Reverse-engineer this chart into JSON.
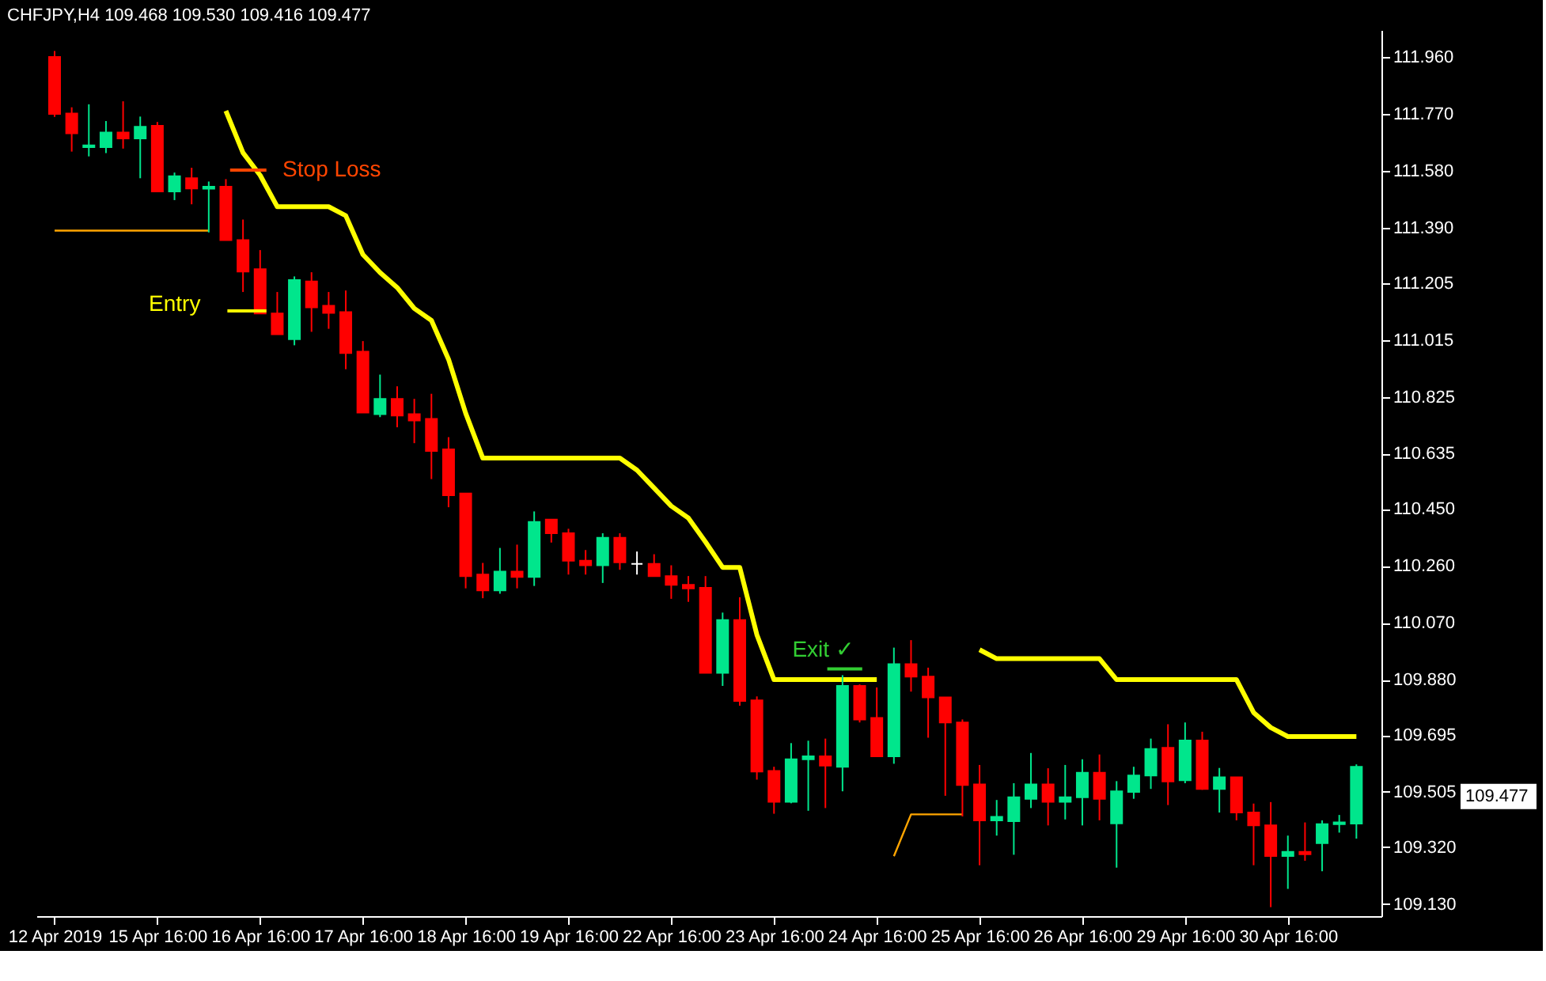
{
  "chart_data": {
    "type": "candlestick",
    "title": "CHFJPY,H4  109.468 109.530 109.416 109.477",
    "categories": [
      "12 Apr 2019",
      null,
      null,
      null,
      null,
      null,
      "15 Apr 16:00",
      null,
      null,
      null,
      null,
      null,
      "16 Apr 16:00",
      null,
      null,
      null,
      null,
      null,
      "17 Apr 16:00",
      null,
      null,
      null,
      null,
      null,
      "18 Apr 16:00",
      null,
      null,
      null,
      null,
      null,
      "19 Apr 16:00",
      null,
      null,
      null,
      null,
      null,
      "22 Apr 16:00",
      null,
      null,
      null,
      null,
      null,
      "23 Apr 16:00",
      null,
      null,
      null,
      null,
      null,
      "24 Apr 16:00",
      null,
      null,
      null,
      null,
      null,
      "25 Apr 16:00",
      null,
      null,
      null,
      null,
      null,
      "26 Apr 16:00",
      null,
      null,
      null,
      null,
      null,
      "29 Apr 16:00",
      null,
      null,
      null,
      null,
      null,
      "30 Apr 16:00",
      null,
      null,
      null,
      null
    ],
    "ohlc": [
      [
        111.96,
        111.98,
        111.76,
        111.77
      ],
      [
        111.771,
        111.792,
        111.644,
        111.705
      ],
      [
        111.659,
        111.802,
        111.628,
        111.665
      ],
      [
        111.659,
        111.746,
        111.639,
        111.708
      ],
      [
        111.708,
        111.812,
        111.654,
        111.688
      ],
      [
        111.688,
        111.761,
        111.555,
        111.727
      ],
      [
        111.73,
        111.743,
        111.511,
        111.511
      ],
      [
        111.511,
        111.574,
        111.482,
        111.562
      ],
      [
        111.555,
        111.59,
        111.468,
        111.521
      ],
      [
        111.52,
        111.544,
        111.374,
        111.527
      ],
      [
        111.527,
        111.552,
        111.348,
        111.348
      ],
      [
        111.348,
        111.417,
        111.175,
        111.243
      ],
      [
        111.251,
        111.315,
        111.103,
        111.103
      ],
      [
        111.103,
        111.175,
        111.034,
        111.034
      ],
      [
        111.017,
        111.227,
        110.997,
        111.215
      ],
      [
        111.21,
        111.241,
        111.042,
        111.124
      ],
      [
        111.129,
        111.175,
        111.052,
        111.105
      ],
      [
        111.108,
        111.18,
        110.917,
        110.971
      ],
      [
        110.976,
        111.011,
        110.772,
        110.772
      ],
      [
        110.767,
        110.899,
        110.757,
        110.818
      ],
      [
        110.818,
        110.86,
        110.723,
        110.762
      ],
      [
        110.767,
        110.818,
        110.67,
        110.746
      ],
      [
        110.751,
        110.835,
        110.55,
        110.644
      ],
      [
        110.649,
        110.69,
        110.456,
        110.496
      ],
      [
        110.502,
        110.502,
        110.185,
        110.226
      ],
      [
        110.231,
        110.27,
        110.152,
        110.178
      ],
      [
        110.178,
        110.32,
        110.167,
        110.241
      ],
      [
        110.241,
        110.331,
        110.185,
        110.223
      ],
      [
        110.223,
        110.442,
        110.193,
        110.407
      ],
      [
        110.415,
        110.415,
        110.338,
        110.369
      ],
      [
        110.369,
        110.384,
        110.231,
        110.277
      ],
      [
        110.277,
        110.313,
        110.231,
        110.262
      ],
      [
        110.262,
        110.369,
        110.203,
        110.354
      ],
      [
        110.354,
        110.369,
        110.247,
        110.272
      ],
      [
        110.267,
        110.308,
        110.231,
        110.267
      ],
      [
        110.267,
        110.299,
        110.226,
        110.226
      ],
      [
        110.226,
        110.262,
        110.15,
        110.197
      ],
      [
        110.197,
        110.226,
        110.14,
        110.185
      ],
      [
        110.187,
        110.226,
        109.903,
        109.903
      ],
      [
        109.903,
        110.104,
        109.859,
        110.079
      ],
      [
        110.079,
        110.155,
        109.793,
        109.809
      ],
      [
        109.811,
        109.824,
        109.546,
        109.573
      ],
      [
        109.575,
        109.589,
        109.432,
        109.472
      ],
      [
        109.472,
        109.668,
        109.467,
        109.614
      ],
      [
        109.614,
        109.676,
        109.442,
        109.624
      ],
      [
        109.624,
        109.683,
        109.451,
        109.593
      ],
      [
        109.589,
        109.895,
        109.507,
        109.859
      ],
      [
        109.859,
        109.864,
        109.737,
        109.747
      ],
      [
        109.752,
        109.854,
        109.624,
        109.624
      ],
      [
        109.624,
        109.987,
        109.599,
        109.932
      ],
      [
        109.932,
        110.012,
        109.84,
        109.89
      ],
      [
        109.89,
        109.92,
        109.686,
        109.821
      ],
      [
        109.821,
        109.821,
        109.492,
        109.737
      ],
      [
        109.737,
        109.747,
        109.423,
        109.528
      ],
      [
        109.53,
        109.595,
        109.26,
        109.41
      ],
      [
        109.41,
        109.478,
        109.359,
        109.422
      ],
      [
        109.407,
        109.534,
        109.295,
        109.487
      ],
      [
        109.482,
        109.635,
        109.451,
        109.53
      ],
      [
        109.53,
        109.584,
        109.393,
        109.472
      ],
      [
        109.472,
        109.595,
        109.413,
        109.487
      ],
      [
        109.487,
        109.614,
        109.393,
        109.569
      ],
      [
        109.569,
        109.63,
        109.41,
        109.482
      ],
      [
        109.4,
        109.541,
        109.252,
        109.507
      ],
      [
        109.505,
        109.589,
        109.482,
        109.56
      ],
      [
        109.56,
        109.683,
        109.515,
        109.648
      ],
      [
        109.652,
        109.731,
        109.461,
        109.54
      ],
      [
        109.544,
        109.737,
        109.534,
        109.677
      ],
      [
        109.677,
        109.706,
        109.512,
        109.515
      ],
      [
        109.515,
        109.585,
        109.436,
        109.554
      ],
      [
        109.554,
        109.554,
        109.41,
        109.436
      ],
      [
        109.436,
        109.466,
        109.26,
        109.393
      ],
      [
        109.393,
        109.471,
        109.12,
        109.291
      ],
      [
        109.291,
        109.359,
        109.181,
        109.305
      ],
      [
        109.305,
        109.403,
        109.275,
        109.297
      ],
      [
        109.334,
        109.41,
        109.24,
        109.397
      ],
      [
        109.397,
        109.428,
        109.369,
        109.403
      ],
      [
        109.399,
        109.597,
        109.349,
        109.589
      ]
    ],
    "series": [
      {
        "type": "line",
        "color": "#ffff00",
        "values": [
          null,
          null,
          null,
          null,
          null,
          null,
          null,
          null,
          null,
          null,
          111.78,
          111.64,
          111.565,
          111.46,
          111.46,
          111.46,
          111.46,
          111.43,
          111.3,
          111.24,
          111.19,
          111.12,
          111.08,
          110.95,
          110.77,
          110.62,
          110.62,
          110.62,
          110.62,
          110.62,
          110.62,
          110.62,
          110.62,
          110.62,
          110.58,
          110.52,
          110.46,
          110.42,
          110.34,
          110.255,
          110.255,
          110.03,
          109.88,
          109.88,
          109.88,
          109.88,
          109.88,
          109.88,
          109.88,
          null,
          null,
          null,
          null,
          null,
          109.98,
          109.95,
          109.95,
          109.95,
          109.95,
          109.95,
          109.95,
          109.95,
          109.88,
          109.88,
          109.88,
          109.88,
          109.88,
          109.88,
          109.88,
          109.88,
          109.77,
          109.72,
          109.69,
          109.69,
          109.69,
          109.69,
          109.69
        ]
      },
      {
        "type": "line",
        "color": "#ffa500",
        "values": [
          111.38,
          111.38,
          111.38,
          111.38,
          111.38,
          111.38,
          111.38,
          111.38,
          111.38,
          111.38,
          null,
          null,
          null,
          null,
          null,
          null,
          null,
          null,
          null,
          null,
          null,
          null,
          null,
          null,
          null,
          null,
          null,
          null,
          null,
          null,
          null,
          null,
          null,
          null,
          null,
          null,
          null,
          null,
          null,
          null,
          null,
          null,
          null,
          null,
          null,
          null,
          null,
          null,
          null,
          109.29,
          109.43,
          109.43,
          109.43,
          109.43,
          null,
          null,
          null,
          null,
          null,
          null,
          null,
          null,
          null,
          null,
          null,
          null,
          null,
          null,
          null,
          null,
          null,
          null,
          null,
          null,
          null,
          null,
          null
        ]
      }
    ],
    "ylim": [
      109.09,
      112.05
    ],
    "yticks": [
      {
        "value": 111.96,
        "label": "111.960"
      },
      {
        "value": 111.77,
        "label": "111.770"
      },
      {
        "value": 111.58,
        "label": "111.580"
      },
      {
        "value": 111.39,
        "label": "111.390"
      },
      {
        "value": 111.205,
        "label": "111.205"
      },
      {
        "value": 111.015,
        "label": "111.015"
      },
      {
        "value": 110.825,
        "label": "110.825"
      },
      {
        "value": 110.635,
        "label": "110.635"
      },
      {
        "value": 110.45,
        "label": "110.450"
      },
      {
        "value": 110.26,
        "label": "110.260"
      },
      {
        "value": 110.07,
        "label": "110.070"
      },
      {
        "value": 109.88,
        "label": "109.880"
      },
      {
        "value": 109.695,
        "label": "109.695"
      },
      {
        "value": 109.505,
        "label": "109.505"
      },
      {
        "value": 109.32,
        "label": "109.320"
      },
      {
        "value": 109.13,
        "label": "109.130"
      }
    ],
    "annotations": [
      "Stop Loss",
      "Entry",
      "Exit ✓",
      "109.477"
    ]
  }
}
